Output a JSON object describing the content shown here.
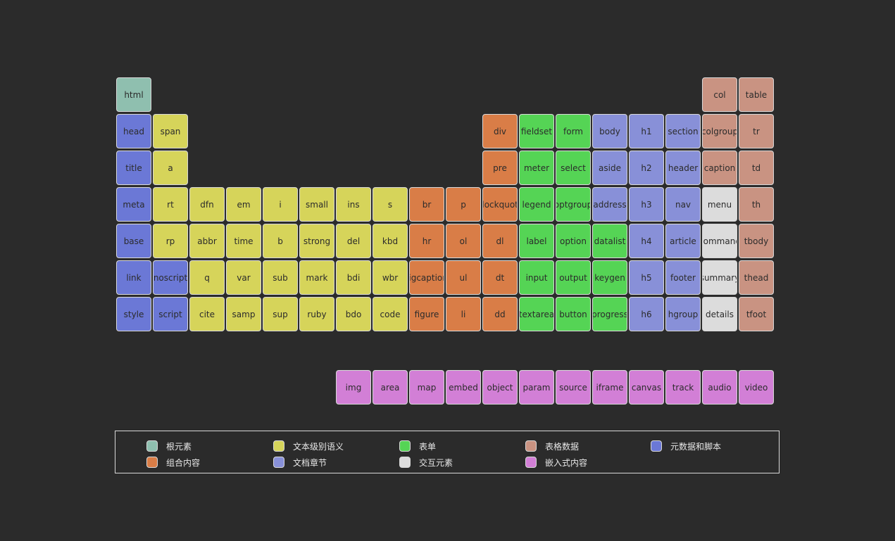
{
  "categories": {
    "root": {
      "label": "根元素",
      "color": "#8fbfaf"
    },
    "text": {
      "label": "文本级别语义",
      "color": "#d6d45a"
    },
    "form": {
      "label": "表单",
      "color": "#55d455"
    },
    "table": {
      "label": "表格数据",
      "color": "#c99382"
    },
    "meta": {
      "label": "元数据和脚本",
      "color": "#6b78d6"
    },
    "grouping": {
      "label": "组合内容",
      "color": "#d97d47"
    },
    "section": {
      "label": "文档章节",
      "color": "#8890d8"
    },
    "interactive": {
      "label": "交互元素",
      "color": "#dcdcdc"
    },
    "embedded": {
      "label": "嵌入式内容",
      "color": "#d27fd6"
    }
  },
  "legend_order": [
    "root",
    "text",
    "form",
    "table",
    "meta",
    "grouping",
    "section",
    "interactive",
    "embedded"
  ],
  "elements": [
    {
      "label": "html",
      "category": "root",
      "col": 0,
      "row": 0
    },
    {
      "label": "col",
      "category": "table",
      "col": 16,
      "row": 0
    },
    {
      "label": "table",
      "category": "table",
      "col": 17,
      "row": 0
    },
    {
      "label": "head",
      "category": "meta",
      "col": 0,
      "row": 1
    },
    {
      "label": "span",
      "category": "text",
      "col": 1,
      "row": 1
    },
    {
      "label": "div",
      "category": "grouping",
      "col": 10,
      "row": 1
    },
    {
      "label": "fieldset",
      "category": "form",
      "col": 11,
      "row": 1
    },
    {
      "label": "form",
      "category": "form",
      "col": 12,
      "row": 1
    },
    {
      "label": "body",
      "category": "section",
      "col": 13,
      "row": 1
    },
    {
      "label": "h1",
      "category": "section",
      "col": 14,
      "row": 1
    },
    {
      "label": "section",
      "category": "section",
      "col": 15,
      "row": 1
    },
    {
      "label": "colgroup",
      "category": "table",
      "col": 16,
      "row": 1
    },
    {
      "label": "tr",
      "category": "table",
      "col": 17,
      "row": 1
    },
    {
      "label": "title",
      "category": "meta",
      "col": 0,
      "row": 2
    },
    {
      "label": "a",
      "category": "text",
      "col": 1,
      "row": 2
    },
    {
      "label": "pre",
      "category": "grouping",
      "col": 10,
      "row": 2
    },
    {
      "label": "meter",
      "category": "form",
      "col": 11,
      "row": 2
    },
    {
      "label": "select",
      "category": "form",
      "col": 12,
      "row": 2
    },
    {
      "label": "aside",
      "category": "section",
      "col": 13,
      "row": 2
    },
    {
      "label": "h2",
      "category": "section",
      "col": 14,
      "row": 2
    },
    {
      "label": "header",
      "category": "section",
      "col": 15,
      "row": 2
    },
    {
      "label": "caption",
      "category": "table",
      "col": 16,
      "row": 2
    },
    {
      "label": "td",
      "category": "table",
      "col": 17,
      "row": 2
    },
    {
      "label": "meta",
      "category": "meta",
      "col": 0,
      "row": 3
    },
    {
      "label": "rt",
      "category": "text",
      "col": 1,
      "row": 3
    },
    {
      "label": "dfn",
      "category": "text",
      "col": 2,
      "row": 3
    },
    {
      "label": "em",
      "category": "text",
      "col": 3,
      "row": 3
    },
    {
      "label": "i",
      "category": "text",
      "col": 4,
      "row": 3
    },
    {
      "label": "small",
      "category": "text",
      "col": 5,
      "row": 3
    },
    {
      "label": "ins",
      "category": "text",
      "col": 6,
      "row": 3
    },
    {
      "label": "s",
      "category": "text",
      "col": 7,
      "row": 3
    },
    {
      "label": "br",
      "category": "grouping",
      "col": 8,
      "row": 3
    },
    {
      "label": "p",
      "category": "grouping",
      "col": 9,
      "row": 3
    },
    {
      "label": "blockquote",
      "category": "grouping",
      "col": 10,
      "row": 3
    },
    {
      "label": "legend",
      "category": "form",
      "col": 11,
      "row": 3
    },
    {
      "label": "optgroup",
      "category": "form",
      "col": 12,
      "row": 3
    },
    {
      "label": "address",
      "category": "section",
      "col": 13,
      "row": 3
    },
    {
      "label": "h3",
      "category": "section",
      "col": 14,
      "row": 3
    },
    {
      "label": "nav",
      "category": "section",
      "col": 15,
      "row": 3
    },
    {
      "label": "menu",
      "category": "interactive",
      "col": 16,
      "row": 3
    },
    {
      "label": "th",
      "category": "table",
      "col": 17,
      "row": 3
    },
    {
      "label": "base",
      "category": "meta",
      "col": 0,
      "row": 4
    },
    {
      "label": "rp",
      "category": "text",
      "col": 1,
      "row": 4
    },
    {
      "label": "abbr",
      "category": "text",
      "col": 2,
      "row": 4
    },
    {
      "label": "time",
      "category": "text",
      "col": 3,
      "row": 4
    },
    {
      "label": "b",
      "category": "text",
      "col": 4,
      "row": 4
    },
    {
      "label": "strong",
      "category": "text",
      "col": 5,
      "row": 4
    },
    {
      "label": "del",
      "category": "text",
      "col": 6,
      "row": 4
    },
    {
      "label": "kbd",
      "category": "text",
      "col": 7,
      "row": 4
    },
    {
      "label": "hr",
      "category": "grouping",
      "col": 8,
      "row": 4
    },
    {
      "label": "ol",
      "category": "grouping",
      "col": 9,
      "row": 4
    },
    {
      "label": "dl",
      "category": "grouping",
      "col": 10,
      "row": 4
    },
    {
      "label": "label",
      "category": "form",
      "col": 11,
      "row": 4
    },
    {
      "label": "option",
      "category": "form",
      "col": 12,
      "row": 4
    },
    {
      "label": "datalist",
      "category": "form",
      "col": 13,
      "row": 4
    },
    {
      "label": "h4",
      "category": "section",
      "col": 14,
      "row": 4
    },
    {
      "label": "article",
      "category": "section",
      "col": 15,
      "row": 4
    },
    {
      "label": "command",
      "category": "interactive",
      "col": 16,
      "row": 4
    },
    {
      "label": "tbody",
      "category": "table",
      "col": 17,
      "row": 4
    },
    {
      "label": "link",
      "category": "meta",
      "col": 0,
      "row": 5
    },
    {
      "label": "noscript",
      "category": "meta",
      "col": 1,
      "row": 5
    },
    {
      "label": "q",
      "category": "text",
      "col": 2,
      "row": 5
    },
    {
      "label": "var",
      "category": "text",
      "col": 3,
      "row": 5
    },
    {
      "label": "sub",
      "category": "text",
      "col": 4,
      "row": 5
    },
    {
      "label": "mark",
      "category": "text",
      "col": 5,
      "row": 5
    },
    {
      "label": "bdi",
      "category": "text",
      "col": 6,
      "row": 5
    },
    {
      "label": "wbr",
      "category": "text",
      "col": 7,
      "row": 5
    },
    {
      "label": "figcaption",
      "category": "grouping",
      "col": 8,
      "row": 5
    },
    {
      "label": "ul",
      "category": "grouping",
      "col": 9,
      "row": 5
    },
    {
      "label": "dt",
      "category": "grouping",
      "col": 10,
      "row": 5
    },
    {
      "label": "input",
      "category": "form",
      "col": 11,
      "row": 5
    },
    {
      "label": "output",
      "category": "form",
      "col": 12,
      "row": 5
    },
    {
      "label": "keygen",
      "category": "form",
      "col": 13,
      "row": 5
    },
    {
      "label": "h5",
      "category": "section",
      "col": 14,
      "row": 5
    },
    {
      "label": "footer",
      "category": "section",
      "col": 15,
      "row": 5
    },
    {
      "label": "summary",
      "category": "interactive",
      "col": 16,
      "row": 5
    },
    {
      "label": "thead",
      "category": "table",
      "col": 17,
      "row": 5
    },
    {
      "label": "style",
      "category": "meta",
      "col": 0,
      "row": 6
    },
    {
      "label": "script",
      "category": "meta",
      "col": 1,
      "row": 6
    },
    {
      "label": "cite",
      "category": "text",
      "col": 2,
      "row": 6
    },
    {
      "label": "samp",
      "category": "text",
      "col": 3,
      "row": 6
    },
    {
      "label": "sup",
      "category": "text",
      "col": 4,
      "row": 6
    },
    {
      "label": "ruby",
      "category": "text",
      "col": 5,
      "row": 6
    },
    {
      "label": "bdo",
      "category": "text",
      "col": 6,
      "row": 6
    },
    {
      "label": "code",
      "category": "text",
      "col": 7,
      "row": 6
    },
    {
      "label": "figure",
      "category": "grouping",
      "col": 8,
      "row": 6
    },
    {
      "label": "li",
      "category": "grouping",
      "col": 9,
      "row": 6
    },
    {
      "label": "dd",
      "category": "grouping",
      "col": 10,
      "row": 6
    },
    {
      "label": "textarea",
      "category": "form",
      "col": 11,
      "row": 6
    },
    {
      "label": "button",
      "category": "form",
      "col": 12,
      "row": 6
    },
    {
      "label": "progress",
      "category": "form",
      "col": 13,
      "row": 6
    },
    {
      "label": "h6",
      "category": "section",
      "col": 14,
      "row": 6
    },
    {
      "label": "hgroup",
      "category": "section",
      "col": 15,
      "row": 6
    },
    {
      "label": "details",
      "category": "interactive",
      "col": 16,
      "row": 6
    },
    {
      "label": "tfoot",
      "category": "table",
      "col": 17,
      "row": 6
    },
    {
      "label": "img",
      "category": "embedded",
      "col": 6,
      "row": 7
    },
    {
      "label": "area",
      "category": "embedded",
      "col": 7,
      "row": 7
    },
    {
      "label": "map",
      "category": "embedded",
      "col": 8,
      "row": 7
    },
    {
      "label": "embed",
      "category": "embedded",
      "col": 9,
      "row": 7
    },
    {
      "label": "object",
      "category": "embedded",
      "col": 10,
      "row": 7
    },
    {
      "label": "param",
      "category": "embedded",
      "col": 11,
      "row": 7
    },
    {
      "label": "source",
      "category": "embedded",
      "col": 12,
      "row": 7
    },
    {
      "label": "iframe",
      "category": "embedded",
      "col": 13,
      "row": 7
    },
    {
      "label": "canvas",
      "category": "embedded",
      "col": 14,
      "row": 7
    },
    {
      "label": "track",
      "category": "embedded",
      "col": 15,
      "row": 7
    },
    {
      "label": "audio",
      "category": "embedded",
      "col": 16,
      "row": 7
    },
    {
      "label": "video",
      "category": "embedded",
      "col": 17,
      "row": 7
    }
  ]
}
